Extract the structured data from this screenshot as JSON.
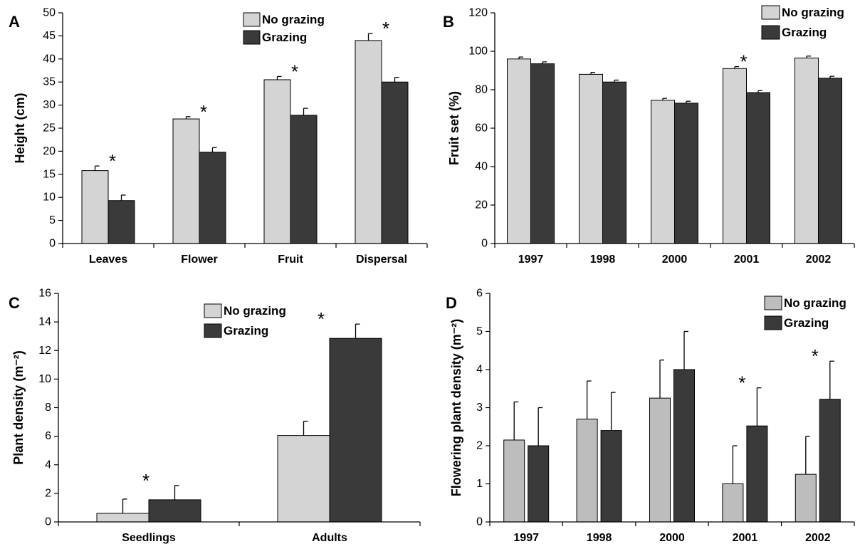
{
  "colors": {
    "no_grazing": "#d4d4d4",
    "no_grazing_alt": "#bdbdbd",
    "grazing": "#3a3a3a",
    "axis": "#000000"
  },
  "chart_data": [
    {
      "id": "A",
      "panel_letter": "A",
      "type": "bar",
      "ylabel": "Height (cm)",
      "ylim": [
        0,
        50
      ],
      "yticks": [
        0,
        5,
        10,
        15,
        20,
        25,
        30,
        35,
        40,
        45,
        50
      ],
      "categories": [
        "Leaves",
        "Flower",
        "Fruit",
        "Dispersal"
      ],
      "series": [
        {
          "name": "No grazing",
          "values": [
            15.8,
            27.0,
            35.5,
            44.0
          ],
          "errors": [
            1.0,
            0.5,
            0.7,
            1.5
          ]
        },
        {
          "name": "Grazing",
          "values": [
            9.3,
            19.8,
            27.8,
            35.0
          ],
          "errors": [
            1.2,
            1.0,
            1.5,
            1.0
          ]
        }
      ],
      "significance": [
        "*",
        "*",
        "*",
        "*"
      ],
      "legend": "top-center",
      "grid": false
    },
    {
      "id": "B",
      "panel_letter": "B",
      "type": "bar",
      "ylabel": "Fruit set (%)",
      "ylim": [
        0,
        120
      ],
      "yticks": [
        0,
        20,
        40,
        60,
        80,
        100,
        120
      ],
      "categories": [
        "1997",
        "1998",
        "2000",
        "2001",
        "2002"
      ],
      "series": [
        {
          "name": "No grazing",
          "values": [
            96,
            88,
            74.5,
            91,
            96.5
          ],
          "errors": [
            1.0,
            1.0,
            1.0,
            1.0,
            1.0
          ]
        },
        {
          "name": "Grazing",
          "values": [
            93.5,
            84,
            73,
            78.5,
            86
          ],
          "errors": [
            1.0,
            1.0,
            1.0,
            1.0,
            1.0
          ]
        }
      ],
      "significance": [
        "",
        "",
        "",
        "*",
        ""
      ],
      "legend": "top-right",
      "grid": false
    },
    {
      "id": "C",
      "panel_letter": "C",
      "type": "bar",
      "ylabel": "Plant density (m⁻²)",
      "ylim": [
        0,
        16
      ],
      "yticks": [
        0,
        2,
        4,
        6,
        8,
        10,
        12,
        14,
        16
      ],
      "categories": [
        "Seedlings",
        "Adults"
      ],
      "series": [
        {
          "name": "No grazing",
          "values": [
            0.6,
            6.05
          ],
          "errors": [
            1.0,
            1.0
          ]
        },
        {
          "name": "Grazing",
          "values": [
            1.55,
            12.85
          ],
          "errors": [
            1.0,
            1.0
          ]
        }
      ],
      "significance": [
        "*",
        "*"
      ],
      "legend": "top-center",
      "grid": false
    },
    {
      "id": "D",
      "panel_letter": "D",
      "type": "bar",
      "ylabel": "Flowering plant density (m⁻²)",
      "ylim": [
        0,
        6
      ],
      "yticks": [
        0,
        1,
        2,
        3,
        4,
        5,
        6
      ],
      "categories": [
        "1997",
        "1998",
        "2000",
        "2001",
        "2002"
      ],
      "series": [
        {
          "name": "No grazing",
          "values": [
            2.15,
            2.7,
            3.25,
            1.0,
            1.25
          ],
          "errors": [
            1.0,
            1.0,
            1.0,
            1.0,
            1.0
          ]
        },
        {
          "name": "Grazing",
          "values": [
            2.0,
            2.4,
            4.0,
            2.52,
            3.22
          ],
          "errors": [
            1.0,
            1.0,
            1.0,
            1.0,
            1.0
          ]
        }
      ],
      "significance": [
        "",
        "",
        "",
        "*",
        "*"
      ],
      "legend": "top-right",
      "grid": false
    }
  ]
}
